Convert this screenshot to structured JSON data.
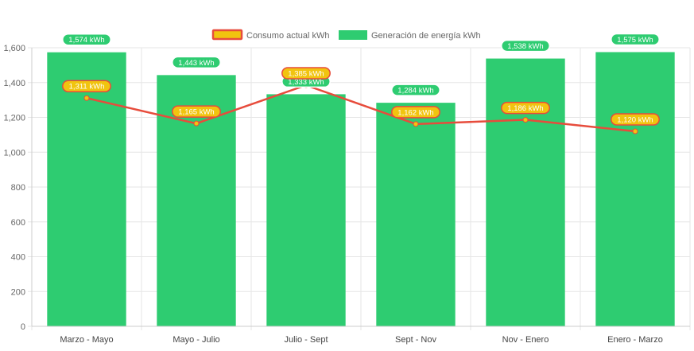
{
  "chart_data": {
    "type": "bar",
    "categories": [
      "Marzo - Mayo",
      "Mayo - Julio",
      "Julio - Sept",
      "Sept - Nov",
      "Nov - Enero",
      "Enero - Marzo"
    ],
    "series": [
      {
        "name": "Generación de energía kWh",
        "type": "bar",
        "values": [
          1574,
          1443,
          1333,
          1284,
          1538,
          1575
        ],
        "labels": [
          "1,574 kWh",
          "1,443 kWh",
          "1,333 kWh",
          "1,284 kWh",
          "1,538 kWh",
          "1,575 kWh"
        ],
        "color": "#2ecc71"
      },
      {
        "name": "Consumo actual kWh",
        "type": "line",
        "values": [
          1311,
          1165,
          1385,
          1162,
          1186,
          1120
        ],
        "labels": [
          "1,311 kWh",
          "1,165 kWh",
          "1,385 kWh",
          "1,162 kWh",
          "1,186 kWh",
          "1,120 kWh"
        ],
        "color": "#e74c3c",
        "marker_color": "#f1c40f"
      }
    ],
    "ylim": [
      0,
      1600
    ],
    "yticks": [
      0,
      200,
      400,
      600,
      800,
      1000,
      1200,
      1400,
      1600
    ],
    "ytick_labels": [
      "0",
      "200",
      "400",
      "600",
      "800",
      "1,000",
      "1,200",
      "1,400",
      "1,600"
    ],
    "grid": true,
    "legend_position": "top-center"
  },
  "legend": {
    "consumo_label": "Consumo actual kWh",
    "generacion_label": "Generación de energía kWh"
  },
  "colors": {
    "bar": "#2ecc71",
    "line": "#e74c3c",
    "marker": "#f1c40f",
    "grid": "#e6e6e6",
    "axis_text": "#666666"
  }
}
